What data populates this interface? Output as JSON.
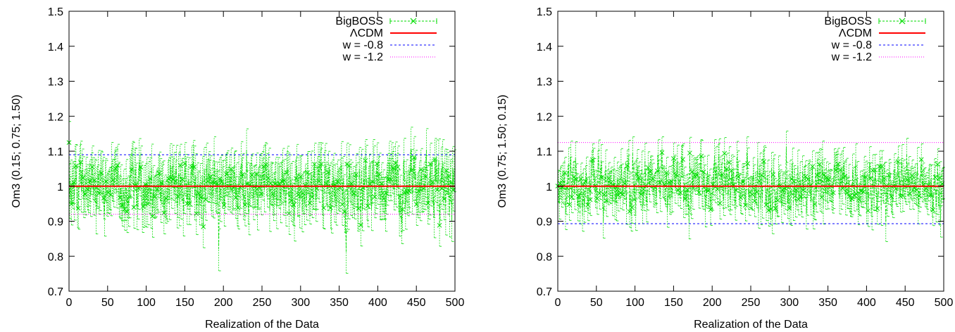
{
  "chart_data": [
    {
      "type": "line",
      "xlabel": "Realization of the Data",
      "ylabel": "Om3 (0.15; 0.75; 1.50)",
      "xlim": [
        0,
        500
      ],
      "ylim": [
        0.7,
        1.5
      ],
      "xticks": [
        "0",
        "50",
        "100",
        "150",
        "200",
        "250",
        "300",
        "350",
        "400",
        "450",
        "500"
      ],
      "yticks": [
        "0.7",
        "0.8",
        "0.9",
        "1",
        "1.1",
        "1.2",
        "1.3",
        "1.4",
        "1.5"
      ],
      "grid": false,
      "legend_position": "top-right",
      "series": [
        {
          "name": "BigBOSS",
          "style": "points-with-errorbars",
          "color": "#00dd00",
          "mean": 1.0,
          "scatter_sigma": 0.045,
          "error_bar": 0.06,
          "n_points": 500
        },
        {
          "name": "ΛCDM",
          "style": "solid",
          "color": "#ff0000",
          "y": 1.0
        },
        {
          "name": "w = -0.8",
          "style": "dashed",
          "color": "#0000ff",
          "y": 1.09
        },
        {
          "name": "w = -1.2",
          "style": "dotted",
          "color": "#ff00ff",
          "y": 0.92
        }
      ]
    },
    {
      "type": "line",
      "xlabel": "Realization of the Data",
      "ylabel": "Om3 (0.75; 1.50; 0.15)",
      "xlim": [
        0,
        500
      ],
      "ylim": [
        0.7,
        1.5
      ],
      "xticks": [
        "0",
        "50",
        "100",
        "150",
        "200",
        "250",
        "300",
        "350",
        "400",
        "450",
        "500"
      ],
      "yticks": [
        "0.7",
        "0.8",
        "0.9",
        "1",
        "1.1",
        "1.2",
        "1.3",
        "1.4",
        "1.5"
      ],
      "grid": false,
      "legend_position": "top-right",
      "series": [
        {
          "name": "BigBOSS",
          "style": "points-with-errorbars",
          "color": "#00dd00",
          "mean": 1.0,
          "scatter_sigma": 0.04,
          "error_bar": 0.045,
          "n_points": 500
        },
        {
          "name": "ΛCDM",
          "style": "solid",
          "color": "#ff0000",
          "y": 1.0
        },
        {
          "name": "w = -0.8",
          "style": "dashed",
          "color": "#0000ff",
          "y": 0.893
        },
        {
          "name": "w = -1.2",
          "style": "dotted",
          "color": "#ff00ff",
          "y": 1.125
        }
      ]
    }
  ]
}
